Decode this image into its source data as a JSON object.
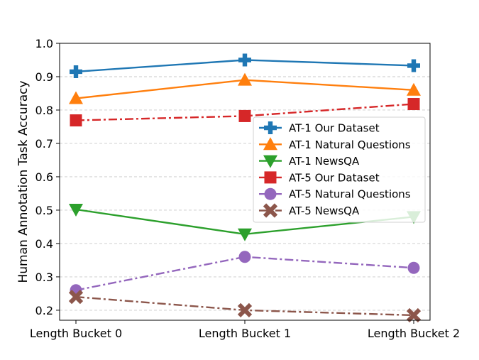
{
  "chart_data": {
    "type": "line",
    "title": "",
    "xlabel": "",
    "ylabel": "Human Annotation Task Accuracy",
    "categories": [
      "Length Bucket 0",
      "Length Bucket 1",
      "Length Bucket 2"
    ],
    "ylim": [
      0.17,
      1.0
    ],
    "yticks": [
      "0.2",
      "0.3",
      "0.4",
      "0.5",
      "0.6",
      "0.7",
      "0.8",
      "0.9",
      "1.0"
    ],
    "grid": "horizontal dashed",
    "legend_position": "center-right",
    "series": [
      {
        "name": "AT-1 Our Dataset",
        "values": [
          0.915,
          0.95,
          0.933
        ],
        "color": "#1f77b4",
        "marker": "plus",
        "linestyle": "solid"
      },
      {
        "name": "AT-1 Natural Questions",
        "values": [
          0.835,
          0.89,
          0.86
        ],
        "color": "#ff7f0e",
        "marker": "triangle-up",
        "linestyle": "solid"
      },
      {
        "name": "AT-1 NewsQA",
        "values": [
          0.502,
          0.428,
          0.48
        ],
        "color": "#2ca02c",
        "marker": "triangle-down",
        "linestyle": "solid"
      },
      {
        "name": "AT-5 Our Dataset",
        "values": [
          0.769,
          0.782,
          0.818
        ],
        "color": "#d62728",
        "marker": "square",
        "linestyle": "dashdot"
      },
      {
        "name": "AT-5 Natural Questions",
        "values": [
          0.26,
          0.36,
          0.327
        ],
        "color": "#9467bd",
        "marker": "circle",
        "linestyle": "dashdot"
      },
      {
        "name": "AT-5 NewsQA",
        "values": [
          0.24,
          0.2,
          0.185
        ],
        "color": "#8c564b",
        "marker": "x",
        "linestyle": "dashdot"
      }
    ]
  }
}
